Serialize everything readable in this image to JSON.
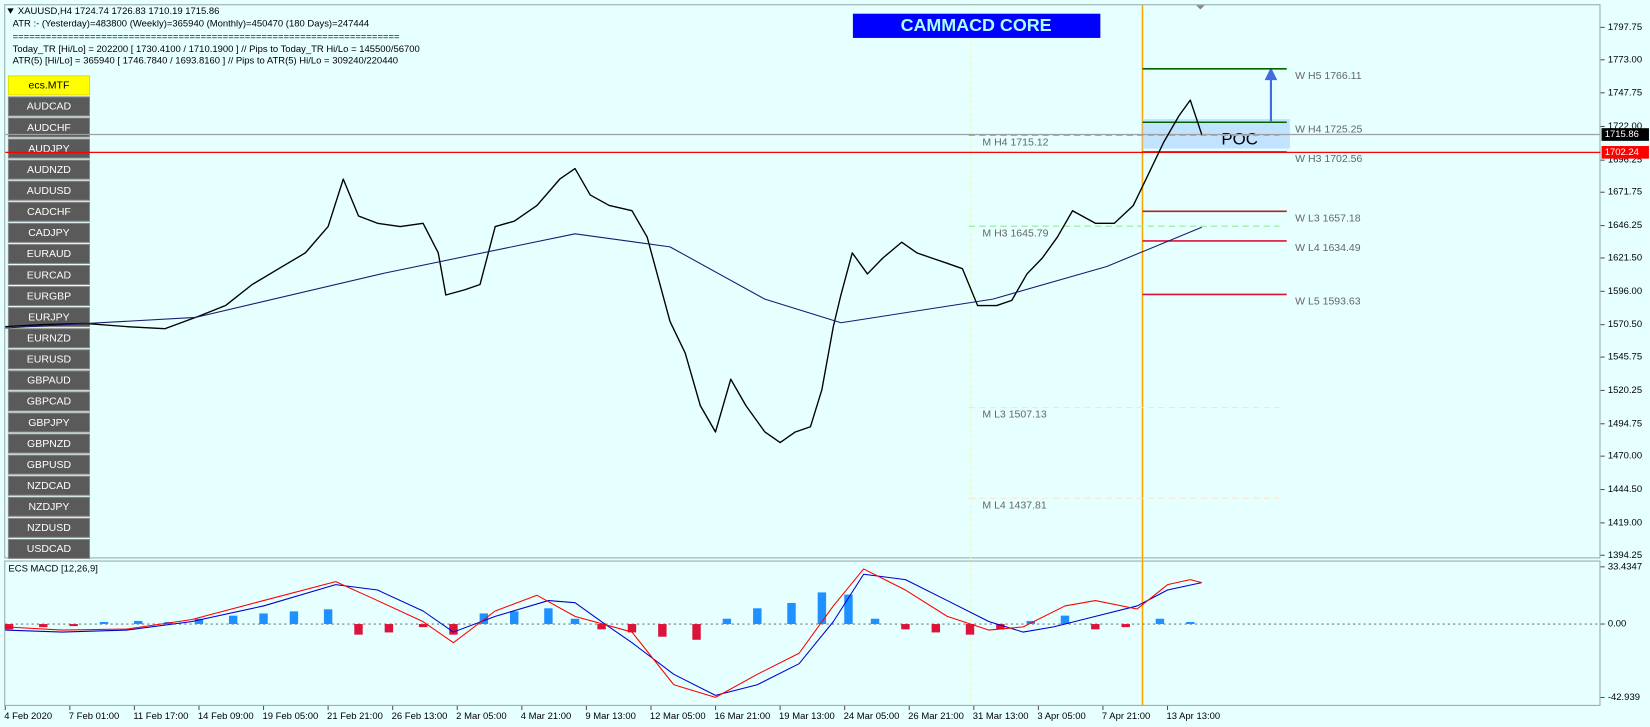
{
  "header": {
    "symbol_line": "XAUUSD,H4  1724.74 1726.83 1710.19 1715.86",
    "atr_line": "ATR :- (Yesterday)=483800     (Weekly)=365940     (Monthly)=450470     (180 Days)=247444",
    "separator": "======================================================================",
    "today_line": "Today_TR [Hi/Lo] = 202200 [ 1730.4100 / 1710.1900 ]  // Pips to Today_TR Hi/Lo  = 145500/56700",
    "atr5_line": "ATR(5)     [Hi/Lo] = 365940 [ 1746.7840 / 1693.8160 ]  // Pips to ATR(5) Hi/Lo     = 309240/220440"
  },
  "banner": "CAMMACD CORE",
  "poc": "POC",
  "symbols": [
    "ecs.MTF",
    "AUDCAD",
    "AUDCHF",
    "AUDJPY",
    "AUDNZD",
    "AUDUSD",
    "CADCHF",
    "CADJPY",
    "EURAUD",
    "EURCAD",
    "EURGBP",
    "EURJPY",
    "EURNZD",
    "EURUSD",
    "GBPAUD",
    "GBPCAD",
    "GBPJPY",
    "GBPNZD",
    "GBPUSD",
    "NZDCAD",
    "NZDJPY",
    "NZDUSD",
    "USDCAD"
  ],
  "chart_data": [
    {
      "type": "line",
      "xlim": [
        0,
        420
      ],
      "ylim": [
        1391.83,
        1814.66
      ],
      "yticks": [
        1797.75,
        {
          "value": 1773,
          "label": "1773.00"
        },
        1747.75,
        {
          "value": 1722,
          "label": "1722.00"
        },
        1696.25,
        1671.75,
        1646.25,
        {
          "value": 1621.5,
          "label": "1621.50"
        },
        {
          "value": 1596,
          "label": "1596.00"
        },
        {
          "value": 1570.5,
          "label": "1570.50"
        },
        1545.75,
        1520.25,
        1494.75,
        {
          "value": 1470,
          "label": "1470.00"
        },
        {
          "value": 1444.5,
          "label": "1444.50"
        },
        {
          "value": 1419,
          "label": "1419.00"
        },
        1394.25
      ],
      "xticks": [
        {
          "value": 0,
          "label": "4 Feb 2020"
        },
        {
          "value": 17,
          "label": "7 Feb 01:00"
        },
        {
          "value": 34,
          "label": "11 Feb 17:00"
        },
        {
          "value": 51,
          "label": "14 Feb 09:00"
        },
        {
          "value": 68,
          "label": "19 Feb 05:00"
        },
        {
          "value": 85,
          "label": "21 Feb 21:00"
        },
        {
          "value": 102,
          "label": "26 Feb 13:00"
        },
        {
          "value": 119,
          "label": "2 Mar 05:00"
        },
        {
          "value": 136,
          "label": "4 Mar 21:00"
        },
        {
          "value": 153,
          "label": "9 Mar 13:00"
        },
        {
          "value": 170,
          "label": "12 Mar 05:00"
        },
        {
          "value": 187,
          "label": "16 Mar 21:00"
        },
        {
          "value": 204,
          "label": "19 Mar 13:00"
        },
        {
          "value": 221,
          "label": "24 Mar 05:00"
        },
        {
          "value": 238,
          "label": "26 Mar 21:00"
        },
        {
          "value": 255,
          "label": "31 Mar 13:00"
        },
        {
          "value": 272,
          "label": "3 Apr 05:00"
        },
        {
          "value": 289,
          "label": "7 Apr 21:00"
        },
        {
          "value": 306,
          "label": "13 Apr 13:00"
        }
      ],
      "grid": false,
      "series": [
        {
          "color": "#000000",
          "x": [
            0,
            10,
            21,
            32,
            42,
            51,
            58,
            65,
            72,
            79,
            85,
            89,
            93,
            98,
            104,
            110,
            114,
            116,
            121,
            125,
            129,
            134,
            140,
            146,
            150,
            154,
            159,
            165,
            169,
            172,
            175,
            179,
            183,
            187,
            191,
            195,
            200,
            204,
            208,
            212,
            215,
            218,
            220,
            223,
            227,
            231,
            236,
            240,
            244,
            248,
            252,
            256,
            261,
            265,
            269,
            273,
            277,
            281,
            287,
            292,
            297,
            301,
            305,
            309,
            312,
            315
          ],
          "values": [
            1569.0,
            1570.6,
            1571.4,
            1569.0,
            1567.4,
            1577.1,
            1585.1,
            1601.2,
            1613.3,
            1625.4,
            1645.5,
            1681.8,
            1653.6,
            1648.0,
            1645.5,
            1648.0,
            1625.4,
            1593.2,
            1597.2,
            1601.2,
            1645.5,
            1649.6,
            1661.6,
            1681.8,
            1689.8,
            1669.7,
            1661.6,
            1657.6,
            1637.5,
            1605.3,
            1573.0,
            1548.9,
            1508.6,
            1488.5,
            1528.8,
            1508.6,
            1488.5,
            1480.4,
            1488.5,
            1492.5,
            1520.7,
            1569.0,
            1593.2,
            1625.4,
            1609.3,
            1621.4,
            1633.5,
            1625.4,
            1621.4,
            1617.4,
            1613.3,
            1585.1,
            1585.1,
            1589.1,
            1609.3,
            1621.4,
            1637.5,
            1657.6,
            1648.0,
            1648.0,
            1661.6,
            1685.8,
            1710.0,
            1730.1,
            1742.2,
            1715.86
          ]
        },
        {
          "color": "#191970",
          "x": [
            0,
            50,
            100,
            150,
            175,
            200,
            220,
            260,
            290,
            315
          ],
          "values": [
            1568,
            1576,
            1610,
            1640,
            1630,
            1590,
            1572,
            1590,
            1615,
            1645
          ]
        }
      ],
      "levels": [
        {
          "label": "W H5 1766.11",
          "value": 1766.11,
          "color": "#006400",
          "style": "solid"
        },
        {
          "label": "W H4 1725.25",
          "value": 1725.25,
          "color": "#006400",
          "style": "solid"
        },
        {
          "label": "W H3 1702.56",
          "value": 1702.56,
          "color": "#ff0000",
          "style": "solid"
        },
        {
          "label": "W L3 1657.18",
          "value": 1657.18,
          "color": "#b22222",
          "style": "solid"
        },
        {
          "label": "W L4 1634.49",
          "value": 1634.49,
          "color": "#dc143c",
          "style": "solid"
        },
        {
          "label": "W L5 1593.63",
          "value": 1593.63,
          "color": "#dc143c",
          "style": "solid"
        },
        {
          "label": "M H4 1715.12",
          "value": 1715.12,
          "color": "#9acd32",
          "style": "dashed"
        },
        {
          "label": "M H3 1645.79",
          "value": 1645.79,
          "color": "#90ee90",
          "style": "dashed"
        },
        {
          "label": "M L3 1507.13",
          "value": 1507.13,
          "color": "#ffe4c4",
          "style": "dashed"
        },
        {
          "label": "M L4 1437.81",
          "value": 1437.81,
          "color": "#ffe4c4",
          "style": "dashed"
        }
      ],
      "price_markers": [
        {
          "value": 1715.86,
          "color": "#000000",
          "line_color": "#a0a0a0"
        },
        {
          "value": 1702.24,
          "color": "#ff0000",
          "line_color": "#ff0000"
        }
      ]
    },
    {
      "type": "bar",
      "title": "ECS MACD [12,26,9]",
      "xlim": [
        0,
        420
      ],
      "ylim": [
        -47.87,
        36.51
      ],
      "yticks": [
        33.4347,
        {
          "value": 0,
          "label": "0.00"
        },
        -42.939
      ],
      "color": "#1e90ff",
      "negative_color": "#dc143c",
      "x": [
        1,
        10,
        18,
        26,
        35,
        43,
        51,
        60,
        68,
        76,
        85,
        93,
        101,
        110,
        118,
        126,
        134,
        143,
        150,
        157,
        165,
        173,
        182,
        190,
        198,
        207,
        215,
        222,
        229,
        237,
        245,
        254,
        262,
        270,
        279,
        287,
        295,
        304,
        312
      ],
      "values": [
        -3.1,
        -1.8,
        -1.2,
        1.2,
        1.8,
        1.2,
        3.1,
        4.9,
        6.2,
        7.4,
        8.6,
        -6.2,
        -4.9,
        -1.8,
        -6.2,
        6.2,
        7.4,
        9.2,
        3.1,
        -3.1,
        -4.9,
        -7.4,
        -9.2,
        3.1,
        9.2,
        12.3,
        18.5,
        17.2,
        3.1,
        -3.1,
        -4.9,
        -6.2,
        -3.1,
        1.8,
        4.9,
        -3.1,
        -1.8,
        3.1,
        1.2
      ],
      "series": [
        {
          "color": "#0000cd",
          "x": [
            0,
            15,
            32,
            49,
            68,
            87,
            98,
            110,
            118,
            129,
            143,
            150,
            157,
            165,
            176,
            187,
            198,
            209,
            218,
            226,
            237,
            248,
            259,
            268,
            276,
            287,
            298,
            306,
            315
          ],
          "values": [
            -3.5,
            -4.7,
            -3.5,
            1.4,
            10.6,
            23.0,
            19.9,
            7.6,
            -4.7,
            4.5,
            13.7,
            12.5,
            1.4,
            -10.9,
            -29.4,
            -41.7,
            -35.5,
            -23.2,
            1.4,
            29.1,
            26.0,
            13.7,
            1.4,
            -4.7,
            -1.7,
            4.5,
            10.6,
            19.9,
            24.2
          ]
        },
        {
          "color": "#ff0000",
          "x": [
            0,
            15,
            32,
            49,
            68,
            87,
            98,
            110,
            118,
            129,
            140,
            150,
            165,
            176,
            187,
            198,
            209,
            218,
            226,
            237,
            248,
            259,
            268,
            279,
            287,
            298,
            306,
            312,
            315
          ],
          "values": [
            -1.7,
            -3.5,
            -2.9,
            2.6,
            13.7,
            24.8,
            13.7,
            1.4,
            -10.9,
            7.6,
            16.8,
            4.5,
            -4.7,
            -35.5,
            -42.9,
            -29.4,
            -17.1,
            10.6,
            32.2,
            19.9,
            4.5,
            -3.5,
            -1.7,
            10.6,
            13.7,
            8.8,
            23.0,
            26.0,
            24.2
          ]
        }
      ]
    }
  ]
}
